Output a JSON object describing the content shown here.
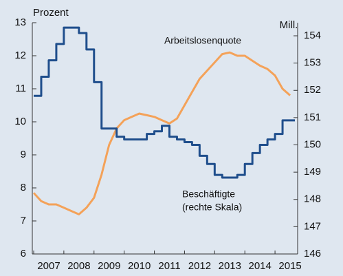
{
  "chart_data": {
    "type": "line",
    "y_label": "Prozent",
    "y2_label": "Mill.",
    "annotations": [
      "Arbeitslosenquote",
      "Beschäftigte",
      "(rechte Skala)"
    ],
    "x": [
      2007,
      2007.25,
      2007.5,
      2007.75,
      2008,
      2008.25,
      2008.5,
      2008.75,
      2009,
      2009.25,
      2009.5,
      2009.75,
      2010,
      2010.25,
      2010.5,
      2010.75,
      2011,
      2011.25,
      2011.5,
      2011.75,
      2012,
      2012.25,
      2012.5,
      2012.75,
      2013,
      2013.25,
      2013.5,
      2013.75,
      2014,
      2014.25,
      2014.5,
      2014.75,
      2015,
      2015.25,
      2015.5
    ],
    "series": [
      {
        "name": "Arbeitslosenquote",
        "color": "#f4a259",
        "values": [
          7.85,
          7.6,
          7.5,
          7.5,
          7.4,
          7.3,
          7.2,
          7.4,
          7.7,
          8.4,
          9.3,
          9.8,
          10.05,
          10.15,
          10.25,
          10.2,
          10.15,
          10.05,
          9.95,
          10.1,
          10.5,
          10.9,
          11.3,
          11.55,
          11.8,
          12.05,
          12.1,
          12.0,
          12.0,
          11.85,
          11.7,
          11.6,
          11.4,
          11.0,
          10.8
        ]
      },
      {
        "name": "Beschäftigte",
        "color": "#1f4e8c",
        "axis": "y2",
        "step": "after",
        "values": [
          151.8,
          152.5,
          153.1,
          153.7,
          154.3,
          154.3,
          154.1,
          153.5,
          152.3,
          150.6,
          150.6,
          150.3,
          150.2,
          150.2,
          150.2,
          150.4,
          150.5,
          150.7,
          150.3,
          150.2,
          150.1,
          150.0,
          149.6,
          149.3,
          148.9,
          148.8,
          148.8,
          148.9,
          149.3,
          149.7,
          150.0,
          150.2,
          150.4,
          150.9,
          150.9
        ]
      }
    ],
    "xlim": [
      2007,
      2015.75
    ],
    "xticks": [
      2007,
      2008,
      2009,
      2010,
      2011,
      2012,
      2013,
      2014,
      2015
    ],
    "ylim": [
      6,
      13
    ],
    "yticks": [
      6,
      7,
      8,
      9,
      10,
      11,
      12,
      13
    ],
    "y2lim": [
      146,
      154.48
    ],
    "y2ticks": [
      146,
      147,
      148,
      149,
      150,
      151,
      152,
      153,
      154
    ]
  }
}
